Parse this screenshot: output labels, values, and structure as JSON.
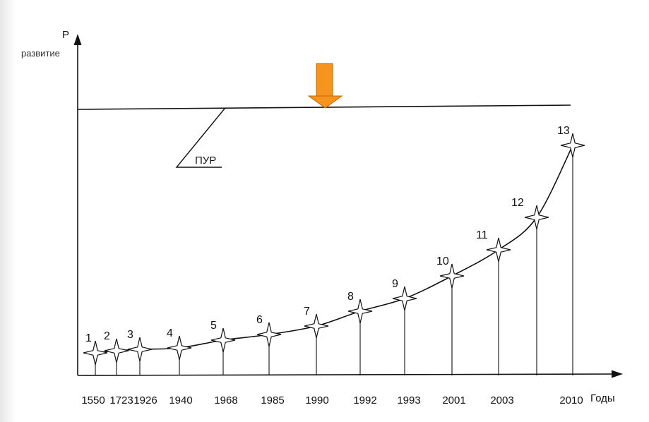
{
  "chart_data": {
    "type": "line",
    "y_axis_labels": [
      "Р",
      "развитие"
    ],
    "x_axis_label": "Годы",
    "x_tick_labels": [
      "1550",
      "1723",
      "1926",
      "1940",
      "1968",
      "1985",
      "1990",
      "1992",
      "1993",
      "2001",
      "2003",
      "2010"
    ],
    "points": [
      {
        "label": "1",
        "year": "1550"
      },
      {
        "label": "2",
        "year": "1723"
      },
      {
        "label": "3",
        "year": "1926"
      },
      {
        "label": "4",
        "year": "1940"
      },
      {
        "label": "5",
        "year": "1968"
      },
      {
        "label": "6",
        "year": "1985"
      },
      {
        "label": "7",
        "year": "1990"
      },
      {
        "label": "8",
        "year": "1992"
      },
      {
        "label": "9",
        "year": "1993"
      },
      {
        "label": "10",
        "year": "2001"
      },
      {
        "label": "11",
        "year": "2003"
      },
      {
        "label": "12",
        "year": ""
      },
      {
        "label": "13",
        "year": "2010"
      }
    ],
    "level_line_label": "ПУР",
    "marker_color": "#F7941D",
    "grid": false
  }
}
